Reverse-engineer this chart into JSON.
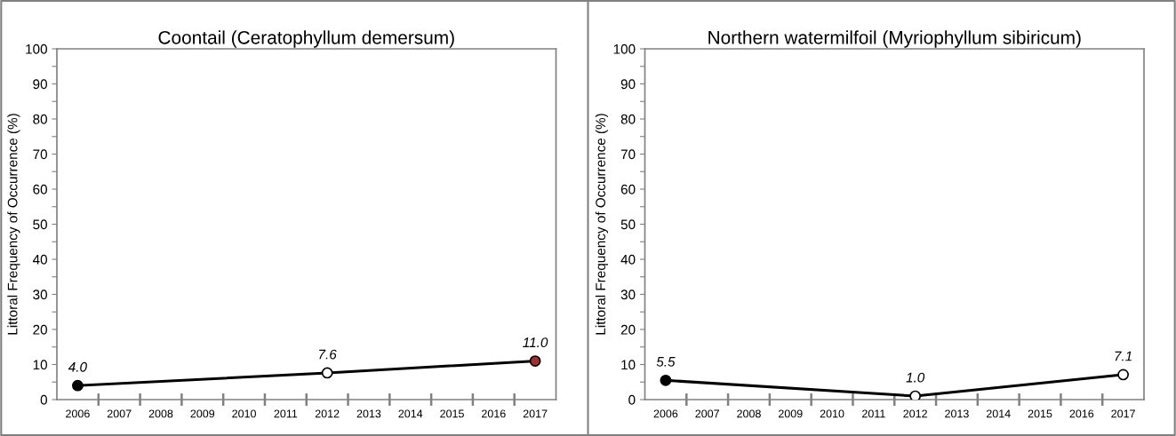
{
  "chart_data": [
    {
      "type": "line",
      "title": "Coontail (Ceratophyllum demersum)",
      "ylabel": "Littoral Frequency of Occurrence (%)",
      "categories": [
        "2006",
        "2007",
        "2008",
        "2009",
        "2010",
        "2011",
        "2012",
        "2013",
        "2014",
        "2015",
        "2016",
        "2017"
      ],
      "series": [
        {
          "color": "#000000",
          "values": [
            4.0,
            null,
            null,
            null,
            null,
            null,
            7.6,
            null,
            null,
            null,
            null,
            11.0
          ],
          "colors": [
            "#000000",
            null,
            null,
            null,
            null,
            null,
            "#ffffff",
            null,
            null,
            null,
            null,
            "#a03030"
          ],
          "value_labels": [
            "4.0",
            null,
            null,
            null,
            null,
            null,
            "7.6",
            null,
            null,
            null,
            null,
            "11.0"
          ]
        }
      ],
      "ylim": [
        0,
        100
      ],
      "yticks": [
        0,
        {
          "value": 5,
          "label": null
        },
        10,
        {
          "value": 15,
          "label": null
        },
        20,
        {
          "value": 25,
          "label": null
        },
        30,
        {
          "value": 35,
          "label": null
        },
        40,
        {
          "value": 45,
          "label": null
        },
        50,
        {
          "value": 55,
          "label": null
        },
        60,
        {
          "value": 65,
          "label": null
        },
        70,
        {
          "value": 75,
          "label": null
        },
        80,
        {
          "value": 85,
          "label": null
        },
        90,
        {
          "value": 95,
          "label": null
        },
        100
      ],
      "marker": "circle",
      "line_style": "solid",
      "grid": false
    },
    {
      "type": "line",
      "title": "Northern watermilfoil (Myriophyllum sibiricum)",
      "ylabel": "Littoral Frequency of Occurrence (%)",
      "categories": [
        "2006",
        "2007",
        "2008",
        "2009",
        "2010",
        "2011",
        "2012",
        "2013",
        "2014",
        "2015",
        "2016",
        "2017"
      ],
      "series": [
        {
          "color": "#000000",
          "values": [
            5.5,
            null,
            null,
            null,
            null,
            null,
            1.0,
            null,
            null,
            null,
            null,
            7.1
          ],
          "colors": [
            "#000000",
            null,
            null,
            null,
            null,
            null,
            "#ffffff",
            null,
            null,
            null,
            null,
            "#ffffff"
          ],
          "value_labels": [
            "5.5",
            null,
            null,
            null,
            null,
            null,
            "1.0",
            null,
            null,
            null,
            null,
            "7.1"
          ]
        }
      ],
      "ylim": [
        0,
        100
      ],
      "yticks": [
        0,
        {
          "value": 5,
          "label": null
        },
        10,
        {
          "value": 15,
          "label": null
        },
        20,
        {
          "value": 25,
          "label": null
        },
        30,
        {
          "value": 35,
          "label": null
        },
        40,
        {
          "value": 45,
          "label": null
        },
        50,
        {
          "value": 55,
          "label": null
        },
        60,
        {
          "value": 65,
          "label": null
        },
        70,
        {
          "value": 75,
          "label": null
        },
        80,
        {
          "value": 85,
          "label": null
        },
        90,
        {
          "value": 95,
          "label": null
        },
        100
      ],
      "marker": "circle",
      "line_style": "solid",
      "grid": false
    }
  ]
}
